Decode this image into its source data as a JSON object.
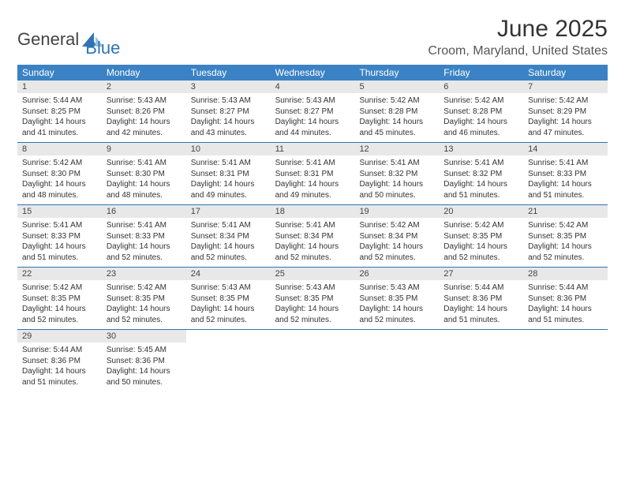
{
  "logo": {
    "general": "General",
    "blue": "Blue"
  },
  "colors": {
    "header_bg": "#3b82c4",
    "header_text": "#ffffff",
    "daynum_bg": "#e8e8e8",
    "week_divider": "#2e74b5",
    "logo_dark": "#2e74b5",
    "logo_light": "#9cc2e4"
  },
  "title": "June 2025",
  "location": "Croom, Maryland, United States",
  "days_of_week": [
    "Sunday",
    "Monday",
    "Tuesday",
    "Wednesday",
    "Thursday",
    "Friday",
    "Saturday"
  ],
  "label": {
    "sunrise": "Sunrise:",
    "sunset": "Sunset:",
    "daylight": "Daylight:"
  },
  "days": [
    {
      "n": 1,
      "sunrise": "5:44 AM",
      "sunset": "8:25 PM",
      "daylight": "14 hours and 41 minutes."
    },
    {
      "n": 2,
      "sunrise": "5:43 AM",
      "sunset": "8:26 PM",
      "daylight": "14 hours and 42 minutes."
    },
    {
      "n": 3,
      "sunrise": "5:43 AM",
      "sunset": "8:27 PM",
      "daylight": "14 hours and 43 minutes."
    },
    {
      "n": 4,
      "sunrise": "5:43 AM",
      "sunset": "8:27 PM",
      "daylight": "14 hours and 44 minutes."
    },
    {
      "n": 5,
      "sunrise": "5:42 AM",
      "sunset": "8:28 PM",
      "daylight": "14 hours and 45 minutes."
    },
    {
      "n": 6,
      "sunrise": "5:42 AM",
      "sunset": "8:28 PM",
      "daylight": "14 hours and 46 minutes."
    },
    {
      "n": 7,
      "sunrise": "5:42 AM",
      "sunset": "8:29 PM",
      "daylight": "14 hours and 47 minutes."
    },
    {
      "n": 8,
      "sunrise": "5:42 AM",
      "sunset": "8:30 PM",
      "daylight": "14 hours and 48 minutes."
    },
    {
      "n": 9,
      "sunrise": "5:41 AM",
      "sunset": "8:30 PM",
      "daylight": "14 hours and 48 minutes."
    },
    {
      "n": 10,
      "sunrise": "5:41 AM",
      "sunset": "8:31 PM",
      "daylight": "14 hours and 49 minutes."
    },
    {
      "n": 11,
      "sunrise": "5:41 AM",
      "sunset": "8:31 PM",
      "daylight": "14 hours and 49 minutes."
    },
    {
      "n": 12,
      "sunrise": "5:41 AM",
      "sunset": "8:32 PM",
      "daylight": "14 hours and 50 minutes."
    },
    {
      "n": 13,
      "sunrise": "5:41 AM",
      "sunset": "8:32 PM",
      "daylight": "14 hours and 51 minutes."
    },
    {
      "n": 14,
      "sunrise": "5:41 AM",
      "sunset": "8:33 PM",
      "daylight": "14 hours and 51 minutes."
    },
    {
      "n": 15,
      "sunrise": "5:41 AM",
      "sunset": "8:33 PM",
      "daylight": "14 hours and 51 minutes."
    },
    {
      "n": 16,
      "sunrise": "5:41 AM",
      "sunset": "8:33 PM",
      "daylight": "14 hours and 52 minutes."
    },
    {
      "n": 17,
      "sunrise": "5:41 AM",
      "sunset": "8:34 PM",
      "daylight": "14 hours and 52 minutes."
    },
    {
      "n": 18,
      "sunrise": "5:41 AM",
      "sunset": "8:34 PM",
      "daylight": "14 hours and 52 minutes."
    },
    {
      "n": 19,
      "sunrise": "5:42 AM",
      "sunset": "8:34 PM",
      "daylight": "14 hours and 52 minutes."
    },
    {
      "n": 20,
      "sunrise": "5:42 AM",
      "sunset": "8:35 PM",
      "daylight": "14 hours and 52 minutes."
    },
    {
      "n": 21,
      "sunrise": "5:42 AM",
      "sunset": "8:35 PM",
      "daylight": "14 hours and 52 minutes."
    },
    {
      "n": 22,
      "sunrise": "5:42 AM",
      "sunset": "8:35 PM",
      "daylight": "14 hours and 52 minutes."
    },
    {
      "n": 23,
      "sunrise": "5:42 AM",
      "sunset": "8:35 PM",
      "daylight": "14 hours and 52 minutes."
    },
    {
      "n": 24,
      "sunrise": "5:43 AM",
      "sunset": "8:35 PM",
      "daylight": "14 hours and 52 minutes."
    },
    {
      "n": 25,
      "sunrise": "5:43 AM",
      "sunset": "8:35 PM",
      "daylight": "14 hours and 52 minutes."
    },
    {
      "n": 26,
      "sunrise": "5:43 AM",
      "sunset": "8:35 PM",
      "daylight": "14 hours and 52 minutes."
    },
    {
      "n": 27,
      "sunrise": "5:44 AM",
      "sunset": "8:36 PM",
      "daylight": "14 hours and 51 minutes."
    },
    {
      "n": 28,
      "sunrise": "5:44 AM",
      "sunset": "8:36 PM",
      "daylight": "14 hours and 51 minutes."
    },
    {
      "n": 29,
      "sunrise": "5:44 AM",
      "sunset": "8:36 PM",
      "daylight": "14 hours and 51 minutes."
    },
    {
      "n": 30,
      "sunrise": "5:45 AM",
      "sunset": "8:36 PM",
      "daylight": "14 hours and 50 minutes."
    }
  ],
  "first_day_offset": 0,
  "total_cells": 35
}
